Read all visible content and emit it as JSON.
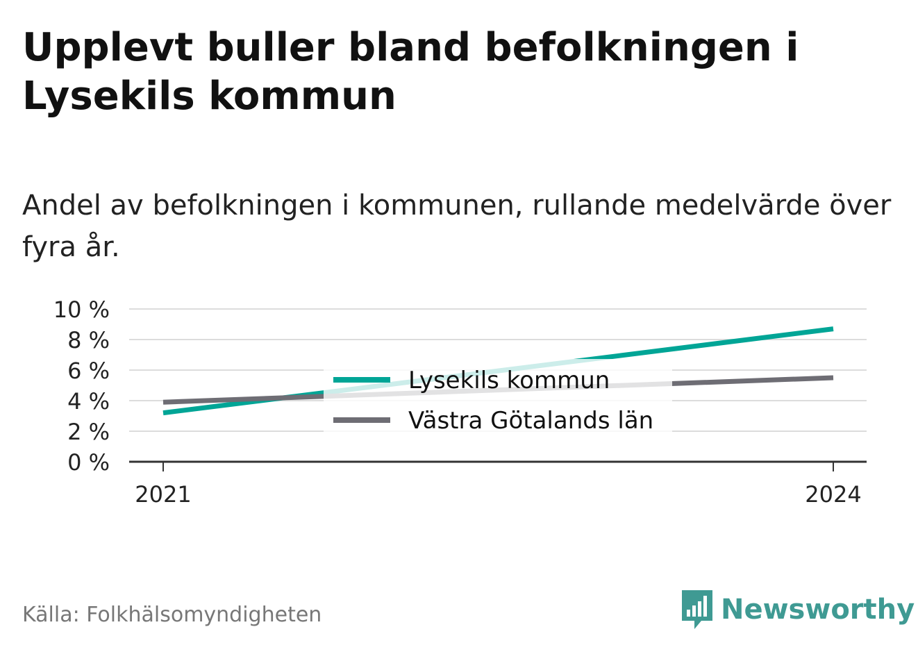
{
  "title": "Upplevt buller bland befolkningen i Lysekils kommun",
  "subtitle": "Andel av befolkningen i kommunen, rullande medelvärde över fyra år.",
  "source": "Källa: Folkhälsomyndigheten",
  "brand": {
    "name": "Newsworthy",
    "icon": "newsworthy-logo-icon",
    "color": "#3f9a93"
  },
  "chart_data": {
    "type": "line",
    "x": [
      "2021",
      "2024"
    ],
    "series": [
      {
        "name": "Lysekils kommun",
        "values": [
          3.2,
          8.7
        ],
        "color": "#00a596"
      },
      {
        "name": "Västra Götalands län",
        "values": [
          3.9,
          5.5
        ],
        "color": "#6e6d74"
      }
    ],
    "yticks": [
      0,
      2,
      4,
      6,
      8,
      10
    ],
    "ytick_labels": [
      "0 %",
      "2 %",
      "4 %",
      "6 %",
      "8 %",
      "10 %"
    ],
    "ylim": [
      0,
      10
    ],
    "grid": true,
    "legend_position": "center"
  }
}
